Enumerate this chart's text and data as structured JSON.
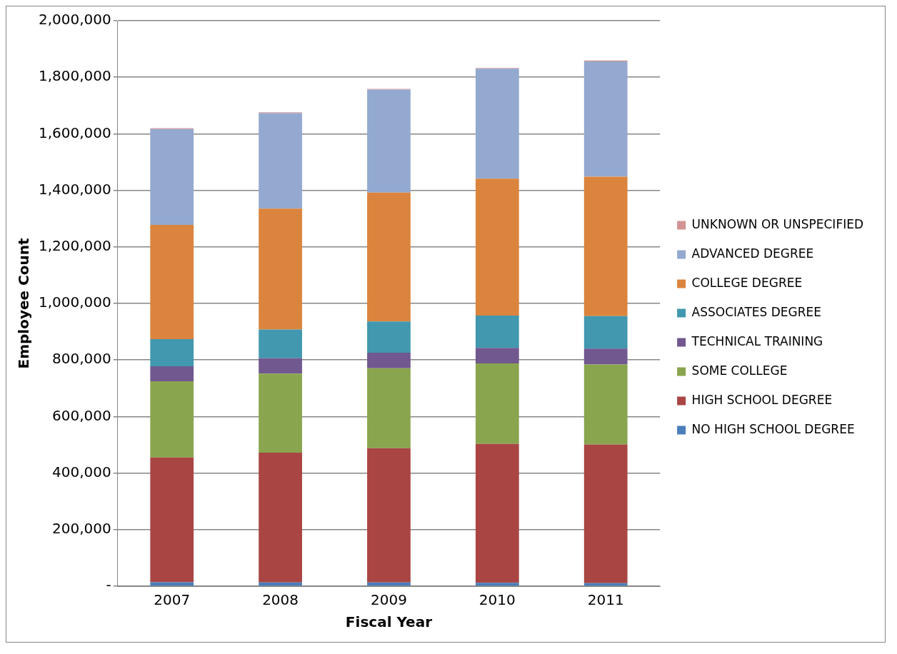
{
  "chart_data": {
    "type": "bar",
    "stacked": true,
    "xlabel": "Fiscal Year",
    "ylabel": "Employee Count",
    "categories": [
      "2007",
      "2008",
      "2009",
      "2010",
      "2011"
    ],
    "ylim": [
      0,
      2000000
    ],
    "yticks": [
      {
        "value": 0,
        "label": "-"
      },
      {
        "value": 200000,
        "label": "200,000"
      },
      {
        "value": 400000,
        "label": "400,000"
      },
      {
        "value": 600000,
        "label": "600,000"
      },
      {
        "value": 800000,
        "label": "800,000"
      },
      {
        "value": 1000000,
        "label": "1,000,000"
      },
      {
        "value": 1200000,
        "label": "1,200,000"
      },
      {
        "value": 1400000,
        "label": "1,400,000"
      },
      {
        "value": 1600000,
        "label": "1,600,000"
      },
      {
        "value": 1800000,
        "label": "1,800,000"
      },
      {
        "value": 2000000,
        "label": "2,000,000"
      }
    ],
    "grid": "y",
    "legend": "right",
    "series": [
      {
        "name": "NO HIGH SCHOOL DEGREE",
        "color": "#4a7ebb",
        "values": [
          14000,
          13000,
          13000,
          12000,
          11000
        ]
      },
      {
        "name": "HIGH SCHOOL DEGREE",
        "color": "#a94543",
        "values": [
          441000,
          459000,
          475000,
          491000,
          490000
        ]
      },
      {
        "name": "SOME COLLEGE",
        "color": "#89a54e",
        "values": [
          270000,
          280000,
          283000,
          285000,
          283000
        ]
      },
      {
        "name": "TECHNICAL TRAINING",
        "color": "#71588f",
        "values": [
          53000,
          54000,
          55000,
          55000,
          56000
        ]
      },
      {
        "name": "ASSOCIATES DEGREE",
        "color": "#4198af",
        "values": [
          96000,
          102000,
          110000,
          114000,
          115000
        ]
      },
      {
        "name": "COLLEGE DEGREE",
        "color": "#db843d",
        "values": [
          404000,
          427000,
          456000,
          484000,
          493000
        ]
      },
      {
        "name": "ADVANCED DEGREE",
        "color": "#93a9cf",
        "values": [
          339000,
          338000,
          364000,
          389000,
          408000
        ]
      },
      {
        "name": "UNKNOWN OR UNSPECIFIED",
        "color": "#d19392",
        "values": [
          3000,
          3000,
          3000,
          3000,
          3000
        ]
      }
    ]
  }
}
